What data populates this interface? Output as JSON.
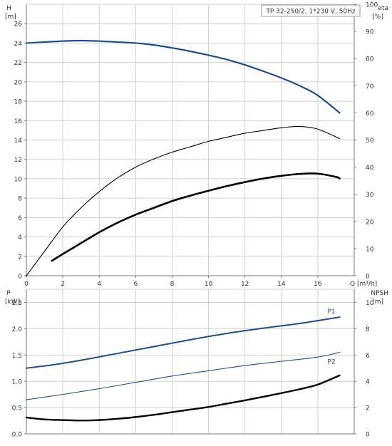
{
  "colors": {
    "grid": "#cfcfcf",
    "axis": "#777777",
    "pump_blue": "#1f4f8b",
    "black": "#000000"
  },
  "chart_data": [
    {
      "type": "line",
      "title": "TP 32-250/2, 1*230 V, 50Hz",
      "xlabel": "Q [m³/h]",
      "xlim": [
        0,
        18
      ],
      "x_ticks": [
        0,
        2,
        4,
        6,
        8,
        10,
        12,
        14,
        16
      ],
      "grid": true,
      "left_axis": {
        "label_line1": "H",
        "label_line2": "[m]",
        "ylim": [
          0,
          28
        ],
        "ticks": [
          0,
          2,
          4,
          6,
          8,
          10,
          12,
          14,
          16,
          18,
          20,
          22,
          24,
          26
        ]
      },
      "right_axis": {
        "label_line1": "eta",
        "label_line2": "[%]",
        "ylim": [
          0,
          100
        ],
        "ticks": [
          0,
          10,
          20,
          30,
          40,
          50,
          60,
          70,
          80,
          90,
          100
        ]
      },
      "series": [
        {
          "axis": "left",
          "color": "#1f4f8b",
          "x": [
            0,
            1,
            2,
            3,
            4,
            5,
            6,
            7,
            8,
            9,
            10,
            11,
            12,
            13,
            14,
            15,
            16,
            17.2
          ],
          "y": [
            24.0,
            24.1,
            24.2,
            24.25,
            24.2,
            24.1,
            24.0,
            23.8,
            23.5,
            23.15,
            22.75,
            22.3,
            21.75,
            21.1,
            20.4,
            19.6,
            18.6,
            16.8
          ]
        },
        {
          "axis": "right",
          "color": "#000000",
          "x": [
            0,
            1,
            2,
            3,
            4,
            5,
            6,
            7,
            8,
            9,
            10,
            11,
            12,
            13,
            14,
            15,
            16,
            17.2
          ],
          "y": [
            0,
            9,
            18,
            25,
            31,
            36,
            40,
            43,
            45.5,
            47.5,
            49.5,
            51,
            52.5,
            53.5,
            54.5,
            55,
            54,
            50.5
          ]
        },
        {
          "axis": "right",
          "color": "#000000",
          "x": [
            1.4,
            2,
            3,
            4,
            5,
            6,
            7,
            8,
            9,
            10,
            11,
            12,
            13,
            14,
            15,
            16,
            17,
            17.2
          ],
          "y": [
            5.5,
            8,
            12,
            16,
            19.5,
            22.5,
            25,
            27.5,
            29.5,
            31.3,
            33,
            34.5,
            35.8,
            36.8,
            37.5,
            37.6,
            36.4,
            35.8
          ]
        }
      ]
    },
    {
      "type": "line",
      "title": "",
      "xlim": [
        0,
        18
      ],
      "grid": true,
      "left_axis": {
        "label_line1": "P",
        "label_line2": "[kW]",
        "ylim": [
          0,
          2.75
        ],
        "ticks": [
          0.0,
          0.5,
          1.0,
          1.5,
          2.0,
          2.5
        ],
        "tick_labels": [
          "0.0",
          "0.5",
          "1.0",
          "1.5",
          "2.0",
          "2.5"
        ]
      },
      "right_axis": {
        "label_line1": "NPSH",
        "label_line2": "[m]",
        "ylim": [
          0,
          11
        ],
        "ticks": [
          0,
          2,
          4,
          6,
          8,
          10
        ]
      },
      "series": [
        {
          "name": "P1",
          "axis": "left",
          "color": "#1f4f8b",
          "x": [
            0,
            1.4,
            3,
            5,
            7,
            9,
            11,
            13,
            15,
            17.2
          ],
          "y": [
            1.25,
            1.31,
            1.4,
            1.53,
            1.66,
            1.79,
            1.91,
            2.01,
            2.1,
            2.22
          ]
        },
        {
          "name": "P2",
          "axis": "left",
          "color": "#1f4f8b",
          "x": [
            0,
            2,
            4,
            6,
            8,
            10,
            12,
            14,
            16,
            17.2
          ],
          "y": [
            0.65,
            0.75,
            0.86,
            0.98,
            1.1,
            1.2,
            1.3,
            1.38,
            1.46,
            1.55
          ]
        },
        {
          "axis": "right",
          "color": "#000000",
          "x": [
            0,
            1,
            2,
            3,
            4,
            5,
            6,
            7,
            8,
            9,
            10,
            11,
            12,
            13,
            14,
            15,
            16,
            17.2
          ],
          "y": [
            1.25,
            1.1,
            1.05,
            1.02,
            1.05,
            1.15,
            1.28,
            1.45,
            1.65,
            1.85,
            2.05,
            2.3,
            2.55,
            2.82,
            3.1,
            3.4,
            3.75,
            4.45
          ]
        }
      ]
    }
  ]
}
